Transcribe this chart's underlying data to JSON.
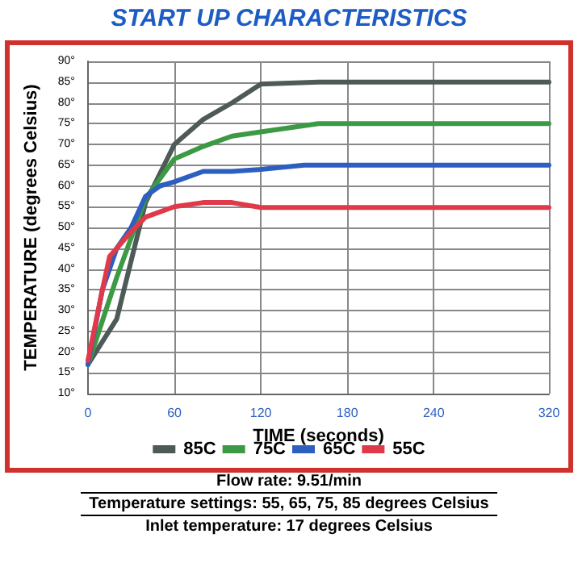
{
  "chart_data": {
    "type": "line",
    "title": "START UP CHARACTERISTICS",
    "xlabel": "TIME (seconds)",
    "ylabel": "TEMPERATURE (degrees Celsius)",
    "x": [
      0,
      20,
      40,
      60,
      80,
      100,
      120,
      160,
      320
    ],
    "series": [
      {
        "name": "85C",
        "color": "#4d5a57",
        "values": [
          17,
          28,
          56,
          70,
          76,
          80,
          84.5,
          85,
          85
        ]
      },
      {
        "name": "75C",
        "color": "#3c9a45",
        "values": [
          17,
          38,
          57,
          66.5,
          69.5,
          72,
          73,
          75,
          75
        ]
      },
      {
        "name": "65C",
        "color": "#2c5fc0",
        "x": [
          0,
          10,
          20,
          30,
          40,
          50,
          60,
          80,
          100,
          120,
          150,
          320
        ],
        "values": [
          17,
          35,
          45,
          50,
          57.5,
          60,
          61,
          63.5,
          63.5,
          64,
          65,
          65
        ]
      },
      {
        "name": "55C",
        "color": "#e03a4a",
        "x": [
          0,
          10,
          15,
          20,
          30,
          40,
          60,
          80,
          100,
          120,
          320
        ],
        "values": [
          18,
          35,
          43,
          45,
          49,
          52.5,
          55,
          56,
          56,
          54.8,
          54.8
        ]
      }
    ],
    "xlim": [
      0,
      320
    ],
    "xticks": [
      0,
      60,
      120,
      180,
      240,
      320
    ],
    "ylim": [
      10,
      90
    ],
    "yticks": [
      {
        "value": 10,
        "label": "10°"
      },
      {
        "value": 15,
        "label": "15°"
      },
      {
        "value": 20,
        "label": "20°"
      },
      {
        "value": 25,
        "label": "25°"
      },
      {
        "value": 30,
        "label": "30°"
      },
      {
        "value": 35,
        "label": "35°"
      },
      {
        "value": 40,
        "label": "40°"
      },
      {
        "value": 45,
        "label": "45°"
      },
      {
        "value": 50,
        "label": "50°"
      },
      {
        "value": 55,
        "label": "55°"
      },
      {
        "value": 60,
        "label": "60°"
      },
      {
        "value": 65,
        "label": "65°"
      },
      {
        "value": 70,
        "label": "70°"
      },
      {
        "value": 75,
        "label": "75°"
      },
      {
        "value": 80,
        "label": "80°"
      },
      {
        "value": 85,
        "label": "85°"
      },
      {
        "value": 90,
        "label": "90°"
      }
    ],
    "grid": true,
    "legend": "bottom",
    "marker": "none",
    "line_style": "solid",
    "annotations": [
      "Flow rate: 9.51/min",
      "Temperature settings: 55, 65, 75, 85 degrees Celsius",
      "Inlet temperature: 17 degrees Celsius"
    ]
  }
}
